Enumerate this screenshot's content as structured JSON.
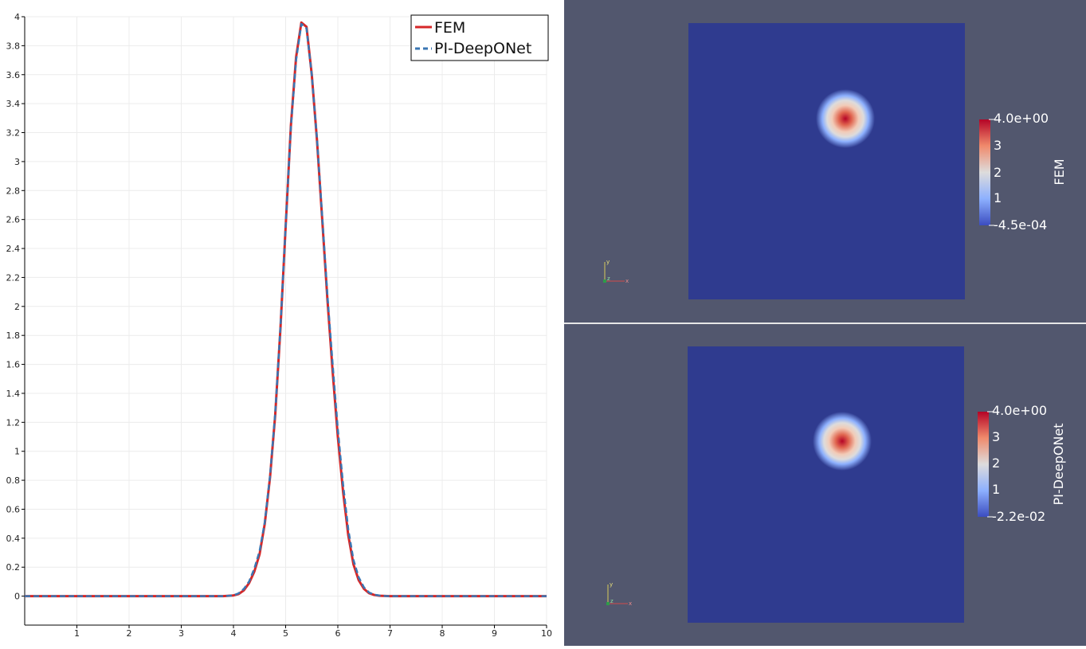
{
  "chart_data": [
    {
      "type": "line",
      "xlim": [
        0,
        10
      ],
      "ylim": [
        -0.2,
        4
      ],
      "x_ticks": [
        "1",
        "2",
        "3",
        "4",
        "5",
        "6",
        "7",
        "8",
        "9",
        "10"
      ],
      "y_ticks": [
        "0",
        "0.2",
        "0.4",
        "0.6",
        "0.8",
        "1",
        "1.2",
        "1.4",
        "1.6",
        "1.8",
        "2",
        "2.2",
        "2.4",
        "2.6",
        "2.8",
        "3",
        "3.2",
        "3.4",
        "3.6",
        "3.8",
        "4"
      ],
      "grid": true,
      "legend_position": "top-right",
      "x": [
        0,
        3.8,
        4.0,
        4.1,
        4.2,
        4.3,
        4.4,
        4.5,
        4.6,
        4.7,
        4.8,
        4.9,
        5.0,
        5.1,
        5.2,
        5.3,
        5.4,
        5.5,
        5.6,
        5.7,
        5.8,
        5.9,
        6.0,
        6.1,
        6.2,
        6.3,
        6.4,
        6.5,
        6.6,
        6.7,
        6.8,
        6.9,
        7.0,
        7.1,
        7.2,
        7.4,
        10
      ],
      "series": [
        {
          "name": "FEM",
          "color": "#d62728",
          "style": "solid",
          "values": [
            0,
            0,
            0.005,
            0.015,
            0.04,
            0.09,
            0.17,
            0.29,
            0.5,
            0.82,
            1.25,
            1.85,
            2.55,
            3.25,
            3.72,
            3.96,
            3.93,
            3.6,
            3.15,
            2.6,
            2.05,
            1.55,
            1.1,
            0.72,
            0.42,
            0.22,
            0.11,
            0.05,
            0.02,
            0.008,
            0.003,
            0.001,
            0,
            0,
            0,
            0,
            0
          ]
        },
        {
          "name": "PI-DeepONet",
          "color": "#3a76b3",
          "style": "dashed",
          "values": [
            0,
            0,
            0.005,
            0.02,
            0.05,
            0.1,
            0.19,
            0.31,
            0.51,
            0.83,
            1.26,
            1.86,
            2.55,
            3.24,
            3.7,
            3.95,
            3.92,
            3.6,
            3.16,
            2.62,
            2.08,
            1.6,
            1.15,
            0.77,
            0.46,
            0.25,
            0.13,
            0.06,
            0.025,
            0.01,
            0.004,
            0.001,
            0,
            0,
            0,
            0,
            0
          ]
        }
      ]
    }
  ],
  "views": [
    {
      "colorbar_title": "FEM",
      "colorbar_max": "4.0e+00",
      "colorbar_min": "-4.5e-04",
      "colorbar_ticks": [
        "3",
        "2",
        "1"
      ],
      "field_peak": 4.0
    },
    {
      "colorbar_title": "PI-DeepONet",
      "colorbar_max": "4.0e+00",
      "colorbar_min": "-2.2e-02",
      "colorbar_ticks": [
        "3",
        "2",
        "1"
      ],
      "field_peak": 4.0
    }
  ],
  "axes_glyph": {
    "x": "x",
    "y": "y",
    "z": "z"
  },
  "colors": {
    "background": "#52576e",
    "field_low": "#2f3b8f",
    "field_high": "#b40426",
    "divider": "#e6e6e6"
  }
}
